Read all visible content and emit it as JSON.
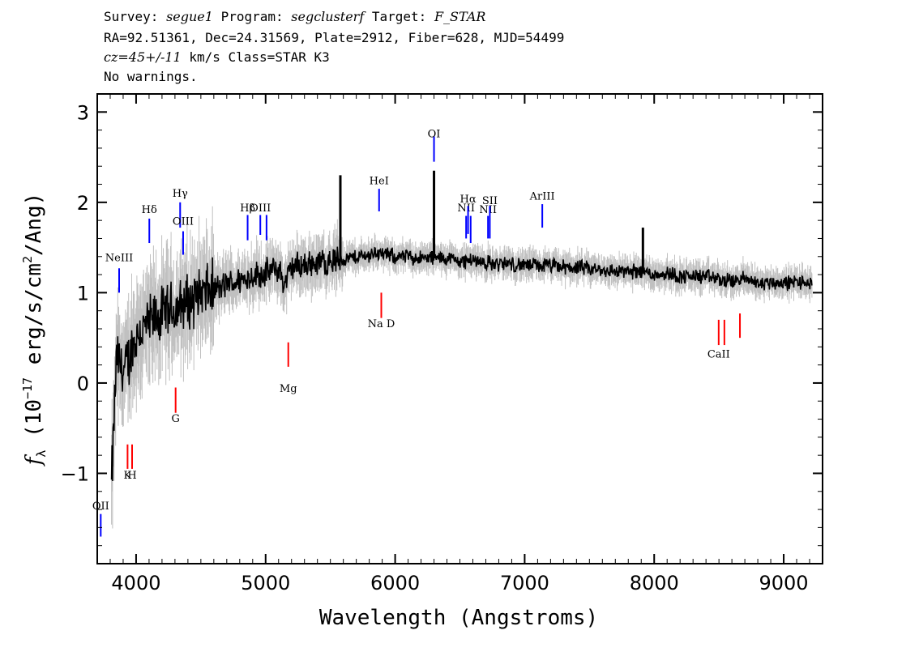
{
  "header": {
    "line1": {
      "survey_label": "Survey: ",
      "survey": "segue1",
      "program_label": " Program: ",
      "program": "segclusterf",
      "target_label": " Target: ",
      "target": "F_STAR"
    },
    "line2": "RA=92.51361, Dec=24.31569, Plate=2912, Fiber=628, MJD=54499",
    "line3": {
      "cz": "cz=45+/-11",
      "cz_unit": " km/s ",
      "class": "Class=STAR K3"
    },
    "line4": "No warnings."
  },
  "chart_data": {
    "type": "line",
    "xlabel": "Wavelength (Angstroms)",
    "ylabel": "f_λ (10^-17 erg/s/cm^2/Ang)",
    "xlim": [
      3700,
      9300
    ],
    "ylim": [
      -2.0,
      3.2
    ],
    "xticks": [
      4000,
      5000,
      6000,
      7000,
      8000,
      9000
    ],
    "yticks": [
      -1,
      0,
      1,
      2,
      3
    ],
    "grid": false,
    "colors": {
      "flux": "#000000",
      "error": "#c0c0c0",
      "emission": "#0000ff",
      "absorption": "#ff0000",
      "sky": "#000000"
    },
    "series": [
      {
        "x": [
          3800,
          3850,
          3900,
          3950,
          4000,
          4050,
          4100,
          4150,
          4200,
          4250,
          4300,
          4350,
          4400,
          4450,
          4500,
          4550,
          4600,
          4650,
          4700,
          4750,
          4800,
          4850,
          4900,
          4950,
          5000,
          5050,
          5100,
          5150,
          5200,
          5250,
          5300,
          5350,
          5400,
          5450,
          5500,
          5550,
          5600,
          5650,
          5700,
          5750,
          5800,
          5850,
          5900,
          5950,
          6000,
          6100,
          6200,
          6300,
          6400,
          6500,
          6600,
          6700,
          6800,
          6900,
          7000,
          7100,
          7200,
          7300,
          7400,
          7500,
          7600,
          7700,
          7800,
          7900,
          8000,
          8100,
          8200,
          8300,
          8400,
          8500,
          8600,
          8700,
          8800,
          8900,
          9000,
          9100,
          9200
        ],
        "y": [
          -1.5,
          0.3,
          0.1,
          0.3,
          0.5,
          0.6,
          0.65,
          0.7,
          0.75,
          0.8,
          0.8,
          0.85,
          0.9,
          0.95,
          1.0,
          1.0,
          1.05,
          1.05,
          1.1,
          1.1,
          1.15,
          1.15,
          1.2,
          1.2,
          1.22,
          1.25,
          1.25,
          1.1,
          1.28,
          1.3,
          1.3,
          1.32,
          1.33,
          1.35,
          1.35,
          1.36,
          1.38,
          1.38,
          1.4,
          1.4,
          1.42,
          1.45,
          1.42,
          1.42,
          1.4,
          1.4,
          1.38,
          1.38,
          1.38,
          1.35,
          1.36,
          1.33,
          1.32,
          1.32,
          1.3,
          1.3,
          1.3,
          1.28,
          1.28,
          1.26,
          1.25,
          1.24,
          1.23,
          1.25,
          1.2,
          1.22,
          1.18,
          1.18,
          1.18,
          1.15,
          1.12,
          1.16,
          1.1,
          1.12,
          1.1,
          1.12,
          1.1
        ]
      }
    ],
    "sky_lines": [
      {
        "x": 5577,
        "y": 2.3
      },
      {
        "x": 6300,
        "y": 2.35
      },
      {
        "x": 7913,
        "y": 1.72
      }
    ],
    "emission_lines": [
      {
        "label": "OII",
        "x": 3727,
        "label_y": -1.4,
        "y0": -1.45,
        "y1": -1.7
      },
      {
        "label": "NeIII",
        "x": 3869,
        "label_y": 1.35,
        "y0": 1.27,
        "y1": 1.0
      },
      {
        "label": "Hδ",
        "x": 4102,
        "label_y": 1.88,
        "y0": 1.82,
        "y1": 1.55
      },
      {
        "label": "Hγ",
        "x": 4340,
        "label_y": 2.06,
        "y0": 2.0,
        "y1": 1.72
      },
      {
        "label": "OIII",
        "x": 4363,
        "label_y": 1.75,
        "y0": 1.68,
        "y1": 1.42
      },
      {
        "label": "Hβ",
        "x": 4861,
        "label_y": 1.9,
        "y0": 1.86,
        "y1": 1.58
      },
      {
        "label": "OIII",
        "x": 4959,
        "label_y": 1.9,
        "y0": 1.86,
        "y1": 1.64
      },
      {
        "label": "",
        "x": 5007,
        "label_y": 1.9,
        "y0": 1.86,
        "y1": 1.58
      },
      {
        "label": "HeI",
        "x": 5876,
        "label_y": 2.2,
        "y0": 2.15,
        "y1": 1.9
      },
      {
        "label": "OI",
        "x": 6300,
        "label_y": 2.72,
        "y0": 2.73,
        "y1": 2.45
      },
      {
        "label": "NII",
        "x": 6548,
        "label_y": 1.9,
        "y0": 1.85,
        "y1": 1.6
      },
      {
        "label": "Hα",
        "x": 6563,
        "label_y": 2.0,
        "y0": 1.96,
        "y1": 1.65
      },
      {
        "label": "",
        "x": 6583,
        "label_y": 1.9,
        "y0": 1.85,
        "y1": 1.55
      },
      {
        "label": "NII",
        "x": 6717,
        "label_y": 1.88,
        "y0": 1.85,
        "y1": 1.6
      },
      {
        "label": "SII",
        "x": 6731,
        "label_y": 1.98,
        "y0": 1.96,
        "y1": 1.6
      },
      {
        "label": "ArIII",
        "x": 7136,
        "label_y": 2.03,
        "y0": 1.98,
        "y1": 1.72
      }
    ],
    "absorption_lines": [
      {
        "label": "K",
        "x": 3934,
        "label_y": -1.06,
        "y0": -0.68,
        "y1": -0.95
      },
      {
        "label": "H",
        "x": 3969,
        "label_y": -1.06,
        "y0": -0.68,
        "y1": -0.95
      },
      {
        "label": "G",
        "x": 4305,
        "label_y": -0.43,
        "y0": -0.05,
        "y1": -0.33
      },
      {
        "label": "Mg",
        "x": 5175,
        "label_y": -0.1,
        "y0": 0.45,
        "y1": 0.18
      },
      {
        "label": "Na D",
        "x": 5893,
        "label_y": 0.62,
        "y0": 1.0,
        "y1": 0.72
      },
      {
        "label": "CaII",
        "x": 8498,
        "label_y": 0.28,
        "y0": 0.7,
        "y1": 0.42
      },
      {
        "label": "",
        "x": 8542,
        "label_y": 0.28,
        "y0": 0.7,
        "y1": 0.42
      },
      {
        "label": "",
        "x": 8662,
        "label_y": 0.28,
        "y0": 0.77,
        "y1": 0.5
      }
    ]
  }
}
